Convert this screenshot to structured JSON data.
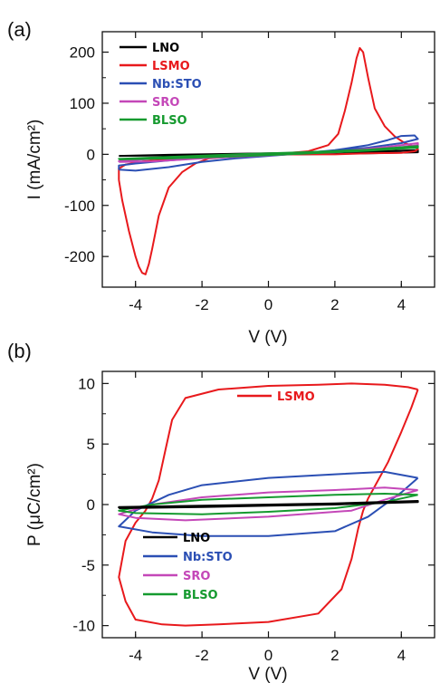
{
  "chart_data": [
    {
      "type": "line",
      "panel_label": "(a)",
      "xlabel": "V (V)",
      "ylabel": "I (mA/cm²)",
      "xlim": [
        -5,
        5
      ],
      "ylim": [
        -260,
        240
      ],
      "xticks": [
        -4,
        -2,
        0,
        2,
        4
      ],
      "yticks": [
        -200,
        -100,
        0,
        100,
        200
      ],
      "legend_position": "top-left",
      "series": [
        {
          "name": "LNO",
          "color": "#000000",
          "x": [
            -4.5,
            -3,
            -1,
            1,
            3,
            4.5,
            4.5,
            3,
            1,
            -1,
            -3,
            -4.5
          ],
          "y": [
            -3,
            -2,
            -1,
            0,
            2,
            4,
            8,
            5,
            3,
            1,
            -1,
            -3
          ]
        },
        {
          "name": "LSMO",
          "color": "#e8191c",
          "x": [
            -4.5,
            -4.4,
            -4.2,
            -4.0,
            -3.9,
            -3.8,
            -3.7,
            -3.6,
            -3.5,
            -3.3,
            -3.0,
            -2.6,
            -2.2,
            -1.8,
            -1.2,
            -0.5,
            0.5,
            1.2,
            1.8,
            2.1,
            2.3,
            2.5,
            2.65,
            2.75,
            2.85,
            3.0,
            3.2,
            3.5,
            3.8,
            4.1,
            4.4,
            4.5,
            4.4,
            4.0,
            3.0,
            2.0,
            1.0,
            0.0,
            -1.0,
            -2.0,
            -3.0,
            -3.8,
            -4.3,
            -4.5
          ],
          "y": [
            -50,
            -90,
            -150,
            -200,
            -220,
            -232,
            -235,
            -215,
            -185,
            -120,
            -65,
            -35,
            -18,
            -8,
            -5,
            -3,
            2,
            6,
            18,
            40,
            85,
            140,
            188,
            208,
            200,
            150,
            90,
            55,
            35,
            22,
            15,
            10,
            6,
            3,
            2,
            0,
            0,
            -1,
            -3,
            -6,
            -10,
            -14,
            -20,
            -28
          ]
        },
        {
          "name": "Nb:STO",
          "color": "#2b4fb4",
          "x": [
            -4.5,
            -4.0,
            -3.0,
            -2.0,
            -1.0,
            0.0,
            1.0,
            2.0,
            3.0,
            3.6,
            4.0,
            4.4,
            4.5,
            4.0,
            3.0,
            2.0,
            1.0,
            0.0,
            -1.0,
            -2.0,
            -3.0,
            -4.0,
            -4.5
          ],
          "y": [
            -30,
            -32,
            -25,
            -15,
            -8,
            -3,
            2,
            8,
            18,
            28,
            36,
            37,
            30,
            22,
            13,
            7,
            3,
            0,
            -3,
            -7,
            -12,
            -18,
            -22
          ]
        },
        {
          "name": "SRO",
          "color": "#c447b8",
          "x": [
            -4.5,
            -3.5,
            -2.0,
            0.0,
            2.0,
            3.5,
            4.5,
            4.5,
            3.5,
            2.0,
            0.0,
            -2.0,
            -3.5,
            -4.5
          ],
          "y": [
            -15,
            -14,
            -8,
            -2,
            5,
            14,
            22,
            18,
            10,
            4,
            1,
            -4,
            -9,
            -13
          ]
        },
        {
          "name": "BLSO",
          "color": "#159a2f",
          "x": [
            -4.5,
            -3.0,
            -1.0,
            1.0,
            3.0,
            4.5,
            4.5,
            3.0,
            1.0,
            -1.0,
            -3.0,
            -4.5
          ],
          "y": [
            -10,
            -8,
            -4,
            1,
            7,
            13,
            16,
            9,
            4,
            0,
            -5,
            -9
          ]
        }
      ]
    },
    {
      "type": "line",
      "panel_label": "(b)",
      "xlabel": "V (V)",
      "ylabel": "P (μC/cm²)",
      "xlim": [
        -5,
        5
      ],
      "ylim": [
        -11,
        11
      ],
      "xticks": [
        -4,
        -2,
        0,
        2,
        4
      ],
      "yticks": [
        -10,
        -5,
        0,
        5,
        10
      ],
      "legend_position": "bottom-left",
      "series": [
        {
          "name": "LSMO",
          "color": "#e8191c",
          "x": [
            4.5,
            4.3,
            4.0,
            3.6,
            3.2,
            3.0,
            2.85,
            2.7,
            2.5,
            2.2,
            1.5,
            0.0,
            -1.5,
            -2.5,
            -3.2,
            -3.6,
            -4.0,
            -4.3,
            -4.5,
            -4.3,
            -4.0,
            -3.7,
            -3.5,
            -3.3,
            -3.1,
            -2.9,
            -2.5,
            -1.5,
            0.0,
            1.5,
            2.5,
            3.5,
            4.2,
            4.5
          ],
          "y": [
            9.5,
            8.0,
            6.0,
            3.5,
            1.5,
            0.5,
            -0.5,
            -2.0,
            -4.5,
            -7.0,
            -9.0,
            -9.7,
            -9.9,
            -10.0,
            -9.9,
            -9.7,
            -9.5,
            -8.0,
            -6.0,
            -3.0,
            -1.5,
            -0.5,
            0.5,
            2.0,
            4.5,
            7.0,
            8.8,
            9.5,
            9.8,
            9.9,
            10.0,
            9.9,
            9.7,
            9.5
          ]
        },
        {
          "name": "Nb:STO",
          "color": "#2b4fb4",
          "x": [
            4.5,
            4.0,
            3.0,
            2.0,
            0.0,
            -2.0,
            -3.5,
            -4.5,
            -4.0,
            -3.0,
            -2.0,
            0.0,
            2.0,
            3.5,
            4.5
          ],
          "y": [
            2.2,
            1.0,
            -1.0,
            -2.2,
            -2.6,
            -2.6,
            -2.3,
            -1.8,
            -0.5,
            0.8,
            1.6,
            2.2,
            2.5,
            2.7,
            2.2
          ]
        },
        {
          "name": "SRO",
          "color": "#c447b8",
          "x": [
            4.5,
            3.5,
            2.5,
            0.0,
            -2.5,
            -4.0,
            -4.5,
            -3.5,
            -2.0,
            0.0,
            2.0,
            3.5,
            4.5
          ],
          "y": [
            1.2,
            0.4,
            -0.5,
            -1.0,
            -1.3,
            -1.1,
            -0.8,
            0.0,
            0.6,
            1.0,
            1.2,
            1.4,
            1.2
          ]
        },
        {
          "name": "BLSO",
          "color": "#159a2f",
          "x": [
            4.5,
            3.5,
            2.0,
            0.0,
            -2.0,
            -4.0,
            -4.5,
            -3.5,
            -2.0,
            0.0,
            2.0,
            3.5,
            4.5
          ],
          "y": [
            0.8,
            0.2,
            -0.3,
            -0.6,
            -0.8,
            -0.7,
            -0.5,
            0.0,
            0.4,
            0.6,
            0.8,
            0.9,
            0.8
          ]
        },
        {
          "name": "LNO",
          "color": "#000000",
          "x": [
            -4.5,
            -2.0,
            0.0,
            2.0,
            4.5,
            4.5,
            2.0,
            0.0,
            -2.0,
            -4.5
          ],
          "y": [
            -0.3,
            -0.2,
            -0.1,
            0.0,
            0.2,
            0.3,
            0.1,
            0.0,
            -0.1,
            -0.2
          ]
        }
      ],
      "legend_groups": [
        {
          "items": [
            "LSMO"
          ]
        },
        {
          "items": [
            "LNO",
            "Nb:STO",
            "SRO",
            "BLSO"
          ]
        }
      ]
    }
  ]
}
